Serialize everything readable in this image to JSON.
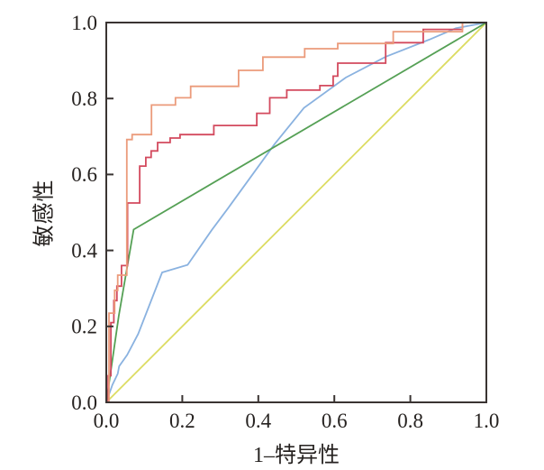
{
  "figure": {
    "background": "#ffffff",
    "axis_color": "#3a3432",
    "tick_label_color": "#262220"
  },
  "chart_data": {
    "type": "line",
    "title": "",
    "xlabel": "1–特异性",
    "ylabel": "敏感性",
    "xlim": [
      0,
      1
    ],
    "ylim": [
      0,
      1
    ],
    "xticks": [
      0.0,
      0.2,
      0.4,
      0.6,
      0.8,
      1.0
    ],
    "yticks": [
      0.0,
      0.2,
      0.4,
      0.6,
      0.8,
      1.0
    ],
    "tick_decimals": 1,
    "grid": false,
    "legend": null,
    "series": [
      {
        "name": "roc-curve-yellow-reference",
        "color": "#dcdc62",
        "points": [
          [
            0,
            0
          ],
          [
            1,
            1
          ]
        ]
      },
      {
        "name": "roc-curve-blue",
        "color": "#8ab2e0",
        "points": [
          [
            0,
            0
          ],
          [
            0.016,
            0.046
          ],
          [
            0.03,
            0.075
          ],
          [
            0.034,
            0.095
          ],
          [
            0.055,
            0.125
          ],
          [
            0.084,
            0.18
          ],
          [
            0.147,
            0.342
          ],
          [
            0.214,
            0.362
          ],
          [
            0.277,
            0.453
          ],
          [
            0.321,
            0.512
          ],
          [
            0.443,
            0.68
          ],
          [
            0.52,
            0.775
          ],
          [
            0.63,
            0.855
          ],
          [
            0.735,
            0.91
          ],
          [
            0.85,
            0.955
          ],
          [
            0.92,
            0.985
          ],
          [
            1,
            1
          ]
        ]
      },
      {
        "name": "roc-curve-green",
        "color": "#55a055",
        "points": [
          [
            0,
            0
          ],
          [
            0.033,
            0.228
          ],
          [
            0.072,
            0.455
          ],
          [
            1,
            1
          ]
        ]
      },
      {
        "name": "roc-curve-red",
        "color": "#d34a5e",
        "points": [
          [
            0,
            0
          ],
          [
            0.005,
            0
          ],
          [
            0.005,
            0.07
          ],
          [
            0.012,
            0.07
          ],
          [
            0.012,
            0.21
          ],
          [
            0.02,
            0.21
          ],
          [
            0.02,
            0.268
          ],
          [
            0.028,
            0.268
          ],
          [
            0.028,
            0.306
          ],
          [
            0.04,
            0.306
          ],
          [
            0.04,
            0.36
          ],
          [
            0.056,
            0.36
          ],
          [
            0.056,
            0.525
          ],
          [
            0.088,
            0.525
          ],
          [
            0.088,
            0.622
          ],
          [
            0.104,
            0.622
          ],
          [
            0.104,
            0.645
          ],
          [
            0.118,
            0.645
          ],
          [
            0.118,
            0.662
          ],
          [
            0.135,
            0.662
          ],
          [
            0.135,
            0.684
          ],
          [
            0.168,
            0.684
          ],
          [
            0.168,
            0.696
          ],
          [
            0.194,
            0.696
          ],
          [
            0.194,
            0.705
          ],
          [
            0.283,
            0.705
          ],
          [
            0.283,
            0.729
          ],
          [
            0.396,
            0.729
          ],
          [
            0.396,
            0.761
          ],
          [
            0.43,
            0.761
          ],
          [
            0.43,
            0.802
          ],
          [
            0.475,
            0.802
          ],
          [
            0.475,
            0.822
          ],
          [
            0.562,
            0.822
          ],
          [
            0.562,
            0.834
          ],
          [
            0.597,
            0.834
          ],
          [
            0.597,
            0.859
          ],
          [
            0.609,
            0.859
          ],
          [
            0.609,
            0.893
          ],
          [
            0.735,
            0.893
          ],
          [
            0.735,
            0.947
          ],
          [
            0.834,
            0.947
          ],
          [
            0.834,
            0.982
          ],
          [
            0.937,
            0.982
          ],
          [
            0.937,
            1
          ],
          [
            1,
            1
          ]
        ]
      },
      {
        "name": "roc-curve-orange",
        "color": "#eb9b7b",
        "points": [
          [
            0,
            0
          ],
          [
            0.007,
            0
          ],
          [
            0.007,
            0.235
          ],
          [
            0.022,
            0.235
          ],
          [
            0.022,
            0.295
          ],
          [
            0.03,
            0.295
          ],
          [
            0.03,
            0.335
          ],
          [
            0.054,
            0.335
          ],
          [
            0.054,
            0.692
          ],
          [
            0.068,
            0.692
          ],
          [
            0.068,
            0.705
          ],
          [
            0.119,
            0.705
          ],
          [
            0.119,
            0.783
          ],
          [
            0.182,
            0.783
          ],
          [
            0.182,
            0.802
          ],
          [
            0.222,
            0.802
          ],
          [
            0.222,
            0.832
          ],
          [
            0.348,
            0.832
          ],
          [
            0.348,
            0.874
          ],
          [
            0.412,
            0.874
          ],
          [
            0.412,
            0.909
          ],
          [
            0.522,
            0.909
          ],
          [
            0.522,
            0.931
          ],
          [
            0.609,
            0.931
          ],
          [
            0.609,
            0.945
          ],
          [
            0.755,
            0.945
          ],
          [
            0.755,
            0.976
          ],
          [
            0.937,
            0.976
          ],
          [
            0.937,
            1
          ],
          [
            1,
            1
          ]
        ]
      }
    ]
  }
}
